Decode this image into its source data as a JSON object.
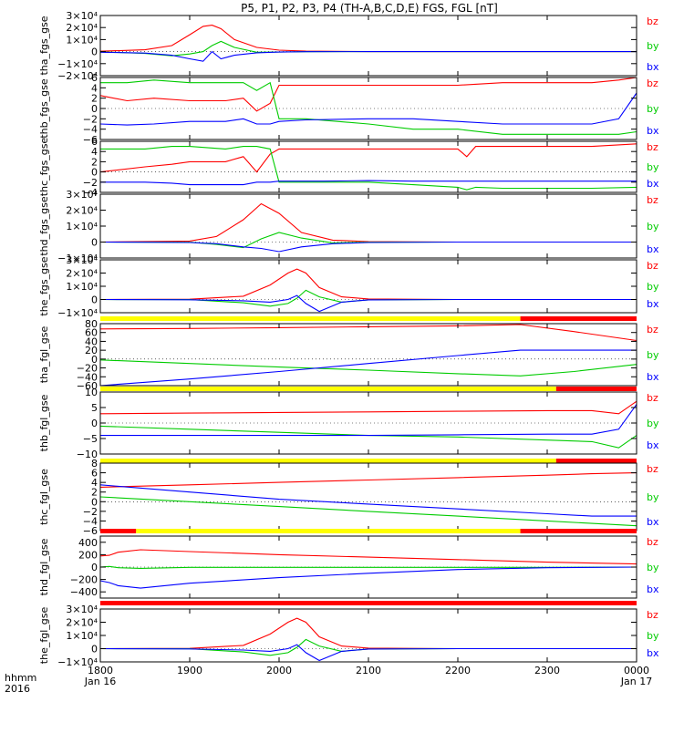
{
  "title": "P5, P1, P2, P3, P4 (TH-A,B,C,D,E) FGS, FGL [nT]",
  "colors": {
    "bz": "#ff0000",
    "by": "#00cc00",
    "bx": "#0000ff",
    "flag_yellow": "#ffff00",
    "flag_red": "#ff0000",
    "axis": "#000000"
  },
  "time_axis": {
    "row_label_1": "hhmm",
    "row_label_2": "2016",
    "ticks": [
      {
        "t": 1800,
        "label": "1800",
        "date": "Jan 16"
      },
      {
        "t": 1900,
        "label": "1900",
        "date": ""
      },
      {
        "t": 2000,
        "label": "2000",
        "date": ""
      },
      {
        "t": 2100,
        "label": "2100",
        "date": ""
      },
      {
        "t": 2200,
        "label": "2200",
        "date": ""
      },
      {
        "t": 2300,
        "label": "2300",
        "date": ""
      },
      {
        "t": 2400,
        "label": "0000",
        "date": "Jan 17"
      }
    ],
    "range": [
      "2016-01-16 18:00",
      "2016-01-17 00:00"
    ]
  },
  "chart_data": [
    {
      "type": "line",
      "ylabel": "tha_fgs_gse",
      "ylim": [
        -20000,
        30000
      ],
      "yticks": [
        {
          "v": 30000,
          "label": "3×10⁴"
        },
        {
          "v": 20000,
          "label": "2×10⁴"
        },
        {
          "v": 10000,
          "label": "1×10⁴"
        },
        {
          "v": 0,
          "label": "0"
        },
        {
          "v": -10000,
          "label": "−1×10⁴"
        },
        {
          "v": -20000,
          "label": "−2×10⁴"
        }
      ],
      "x": [
        1800,
        1850,
        1880,
        1900,
        1915,
        1925,
        1935,
        1950,
        1975,
        2000,
        2030,
        2100,
        2400
      ],
      "series": [
        {
          "name": "bz",
          "values": [
            300,
            1500,
            5000,
            14000,
            21000,
            22000,
            19000,
            10000,
            3500,
            1200,
            400,
            0,
            0
          ]
        },
        {
          "name": "by",
          "values": [
            -200,
            -1500,
            -3500,
            -2000,
            0,
            5000,
            8500,
            3500,
            -500,
            -400,
            -100,
            0,
            0
          ]
        },
        {
          "name": "bx",
          "values": [
            -500,
            -1200,
            -3000,
            -6000,
            -8000,
            0,
            -6000,
            -3000,
            -1000,
            -400,
            -100,
            0,
            0
          ]
        }
      ]
    },
    {
      "type": "line",
      "ylabel": "thb_fgs_gse",
      "ylim": [
        -6,
        6
      ],
      "yticks": [
        {
          "v": 6,
          "label": "6"
        },
        {
          "v": 4,
          "label": "4"
        },
        {
          "v": 2,
          "label": "2"
        },
        {
          "v": 0,
          "label": "0"
        },
        {
          "v": -2,
          "label": "−2"
        },
        {
          "v": -4,
          "label": "−4"
        },
        {
          "v": -6,
          "label": "−6"
        }
      ],
      "x": [
        1800,
        1830,
        1860,
        1900,
        1940,
        1960,
        1975,
        1990,
        2000,
        2030,
        2100,
        2150,
        2200,
        2250,
        2300,
        2350,
        2380,
        2400
      ],
      "series": [
        {
          "name": "bz",
          "values": [
            2.5,
            1.5,
            2,
            1.5,
            1.5,
            2,
            -0.5,
            1,
            4.5,
            4.5,
            4.5,
            4.5,
            4.5,
            5,
            5,
            5,
            5.5,
            6
          ]
        },
        {
          "name": "by",
          "values": [
            5,
            5,
            5.5,
            5,
            5,
            5,
            3.5,
            5,
            -2,
            -2,
            -3,
            -4,
            -4,
            -5,
            -5,
            -5,
            -5,
            -4.5
          ]
        },
        {
          "name": "bx",
          "values": [
            -3,
            -3.2,
            -3,
            -2.5,
            -2.5,
            -2,
            -3,
            -3,
            -2.5,
            -2.2,
            -2,
            -2,
            -2.5,
            -3,
            -3,
            -3,
            -2,
            3
          ]
        }
      ]
    },
    {
      "type": "line",
      "ylabel": "thc_fgs_gse",
      "ylim": [
        -4,
        6
      ],
      "yticks": [
        {
          "v": 6,
          "label": "6"
        },
        {
          "v": 4,
          "label": "4"
        },
        {
          "v": 2,
          "label": "2"
        },
        {
          "v": 0,
          "label": "0"
        },
        {
          "v": -2,
          "label": "−2"
        },
        {
          "v": -4,
          "label": "−4"
        }
      ],
      "x": [
        1800,
        1850,
        1880,
        1900,
        1940,
        1960,
        1975,
        1990,
        2000,
        2050,
        2100,
        2150,
        2200,
        2210,
        2220,
        2250,
        2300,
        2350,
        2400
      ],
      "series": [
        {
          "name": "bz",
          "values": [
            0,
            1,
            1.5,
            2,
            2,
            3,
            0,
            3.5,
            4.5,
            4.5,
            4.5,
            4.5,
            4.5,
            3,
            5,
            5,
            5,
            5,
            5.5
          ]
        },
        {
          "name": "by",
          "values": [
            4.5,
            4.5,
            5,
            5,
            4.5,
            5,
            5,
            4.5,
            -2,
            -2,
            -2,
            -2.5,
            -3,
            -3.5,
            -3,
            -3.2,
            -3.2,
            -3.2,
            -3
          ]
        },
        {
          "name": "bx",
          "values": [
            -2,
            -2,
            -2.2,
            -2.5,
            -2.5,
            -2.5,
            -2,
            -2,
            -1.8,
            -1.8,
            -1.7,
            -1.8,
            -1.8,
            -1.8,
            -1.8,
            -1.8,
            -1.8,
            -1.8,
            -1.8
          ]
        }
      ]
    },
    {
      "type": "line",
      "ylabel": "thd_fgs_gse",
      "ylim": [
        -10000,
        30000
      ],
      "yticks": [
        {
          "v": 30000,
          "label": "3×10⁴"
        },
        {
          "v": 20000,
          "label": "2×10⁴"
        },
        {
          "v": 10000,
          "label": "1×10⁴"
        },
        {
          "v": 0,
          "label": "0"
        },
        {
          "v": -10000,
          "label": "−1×10⁴"
        }
      ],
      "x": [
        1800,
        1900,
        1930,
        1960,
        1980,
        2000,
        2025,
        2060,
        2100,
        2200,
        2400
      ],
      "series": [
        {
          "name": "bz",
          "values": [
            0,
            600,
            3500,
            14000,
            24000,
            18000,
            6000,
            1200,
            300,
            0,
            0
          ]
        },
        {
          "name": "by",
          "values": [
            0,
            -100,
            -1500,
            -3500,
            2000,
            6000,
            2500,
            -500,
            -100,
            0,
            0
          ]
        },
        {
          "name": "bx",
          "values": [
            0,
            -300,
            -1000,
            -3000,
            -4000,
            -6000,
            -3000,
            -1000,
            -300,
            0,
            0
          ]
        }
      ]
    },
    {
      "type": "line",
      "ylabel": "the_fgs_gse",
      "ylim": [
        -10000,
        30000
      ],
      "yticks": [
        {
          "v": 30000,
          "label": "3×10⁴"
        },
        {
          "v": 20000,
          "label": "2×10⁴"
        },
        {
          "v": 10000,
          "label": "1×10⁴"
        },
        {
          "v": 0,
          "label": "0"
        },
        {
          "v": -10000,
          "label": "−1×10⁴"
        }
      ],
      "x": [
        1800,
        1900,
        1960,
        1990,
        2010,
        2020,
        2030,
        2045,
        2070,
        2100,
        2200,
        2400
      ],
      "series": [
        {
          "name": "bz",
          "values": [
            0,
            200,
            2500,
            11000,
            20000,
            23000,
            20000,
            9000,
            2000,
            400,
            0,
            0
          ]
        },
        {
          "name": "by",
          "values": [
            0,
            -100,
            -2500,
            -5000,
            -3000,
            1000,
            7000,
            2000,
            -2000,
            -300,
            0,
            0
          ]
        },
        {
          "name": "bx",
          "values": [
            0,
            -200,
            -1000,
            -2000,
            0,
            3000,
            -3000,
            -9000,
            -2000,
            -300,
            0,
            0
          ]
        }
      ]
    },
    {
      "type": "line",
      "ylabel": "tha_fgl_gse",
      "ylim": [
        -60,
        80
      ],
      "yticks": [
        {
          "v": 80,
          "label": "80"
        },
        {
          "v": 60,
          "label": "60"
        },
        {
          "v": 40,
          "label": "40"
        },
        {
          "v": 20,
          "label": "20"
        },
        {
          "v": 0,
          "label": "0"
        },
        {
          "v": -20,
          "label": "−20"
        },
        {
          "v": -40,
          "label": "−40"
        },
        {
          "v": -60,
          "label": "−60"
        }
      ],
      "flag": [
        {
          "from": 1800,
          "to": 2270,
          "color": "yellow"
        },
        {
          "from": 2270,
          "to": 2400,
          "color": "red"
        }
      ],
      "x": [
        1800,
        1900,
        2000,
        2100,
        2200,
        2270,
        2330,
        2400
      ],
      "series": [
        {
          "name": "bz",
          "values": [
            68,
            69,
            71,
            73,
            75,
            78,
            62,
            42
          ]
        },
        {
          "name": "by",
          "values": [
            -2,
            -10,
            -18,
            -25,
            -33,
            -38,
            -28,
            -12
          ]
        },
        {
          "name": "bx",
          "values": [
            -60,
            -45,
            -28,
            -10,
            8,
            20,
            20,
            20
          ]
        }
      ]
    },
    {
      "type": "line",
      "ylabel": "thb_fgl_gse",
      "ylim": [
        -10,
        10
      ],
      "yticks": [
        {
          "v": 10,
          "label": "10"
        },
        {
          "v": 5,
          "label": "5"
        },
        {
          "v": 0,
          "label": "0"
        },
        {
          "v": -5,
          "label": "−5"
        },
        {
          "v": -10,
          "label": "−10"
        }
      ],
      "flag": [
        {
          "from": 1800,
          "to": 2310,
          "color": "yellow"
        },
        {
          "from": 2310,
          "to": 2400,
          "color": "red"
        }
      ],
      "x": [
        1800,
        1900,
        2000,
        2100,
        2200,
        2300,
        2350,
        2380,
        2400
      ],
      "series": [
        {
          "name": "bz",
          "values": [
            3,
            3.2,
            3.4,
            3.6,
            3.8,
            4,
            4,
            3,
            7
          ]
        },
        {
          "name": "by",
          "values": [
            -1,
            -2,
            -3,
            -4,
            -4.5,
            -5.5,
            -6,
            -8,
            -4
          ]
        },
        {
          "name": "bx",
          "values": [
            -4,
            -4,
            -4,
            -4,
            -3.8,
            -3.6,
            -3.6,
            -2,
            6
          ]
        }
      ]
    },
    {
      "type": "line",
      "ylabel": "thc_fgl_gse",
      "ylim": [
        -6,
        8
      ],
      "yticks": [
        {
          "v": 8,
          "label": "8"
        },
        {
          "v": 6,
          "label": "6"
        },
        {
          "v": 4,
          "label": "4"
        },
        {
          "v": 2,
          "label": "2"
        },
        {
          "v": 0,
          "label": "0"
        },
        {
          "v": -2,
          "label": "−2"
        },
        {
          "v": -4,
          "label": "−4"
        },
        {
          "v": -6,
          "label": "−6"
        }
      ],
      "flag": [
        {
          "from": 1800,
          "to": 2310,
          "color": "yellow"
        },
        {
          "from": 2310,
          "to": 2400,
          "color": "red"
        }
      ],
      "x": [
        1800,
        1900,
        2000,
        2100,
        2200,
        2300,
        2350,
        2400
      ],
      "series": [
        {
          "name": "bz",
          "values": [
            3,
            3.5,
            4,
            4.5,
            5,
            5.5,
            5.8,
            6
          ]
        },
        {
          "name": "by",
          "values": [
            1,
            0,
            -1,
            -2,
            -3,
            -4,
            -4.5,
            -5
          ]
        },
        {
          "name": "bx",
          "values": [
            3.5,
            2,
            0.5,
            -0.5,
            -1.5,
            -2.5,
            -3,
            -3
          ]
        }
      ]
    },
    {
      "type": "line",
      "ylabel": "thd_fgl_gse",
      "ylim": [
        -500,
        500
      ],
      "yticks": [
        {
          "v": 400,
          "label": "400"
        },
        {
          "v": 200,
          "label": "200"
        },
        {
          "v": 0,
          "label": "0"
        },
        {
          "v": -200,
          "label": "−200"
        },
        {
          "v": -400,
          "label": "−400"
        }
      ],
      "flag": [
        {
          "from": 1800,
          "to": 1840,
          "color": "red"
        },
        {
          "from": 1840,
          "to": 2270,
          "color": "yellow"
        },
        {
          "from": 2270,
          "to": 2400,
          "color": "red"
        }
      ],
      "x": [
        1800,
        1810,
        1820,
        1845,
        1900,
        2000,
        2100,
        2200,
        2300,
        2400
      ],
      "series": [
        {
          "name": "bz",
          "values": [
            180,
            190,
            240,
            280,
            250,
            200,
            160,
            120,
            80,
            50
          ]
        },
        {
          "name": "by",
          "values": [
            0,
            10,
            -10,
            -20,
            -5,
            -5,
            -5,
            -5,
            -5,
            0
          ]
        },
        {
          "name": "bx",
          "values": [
            -220,
            -250,
            -300,
            -340,
            -260,
            -170,
            -100,
            -40,
            -10,
            0
          ]
        }
      ]
    },
    {
      "type": "line",
      "ylabel": "the_fgl_gse",
      "ylim": [
        -10000,
        30000
      ],
      "yticks": [
        {
          "v": 30000,
          "label": "3×10⁴"
        },
        {
          "v": 20000,
          "label": "2×10⁴"
        },
        {
          "v": 10000,
          "label": "1×10⁴"
        },
        {
          "v": 0,
          "label": "0"
        },
        {
          "v": -10000,
          "label": "−1×10⁴"
        }
      ],
      "flag": [
        {
          "from": 1800,
          "to": 2400,
          "color": "red"
        }
      ],
      "x": [
        1800,
        1900,
        1960,
        1990,
        2010,
        2020,
        2030,
        2045,
        2070,
        2100,
        2200,
        2400
      ],
      "series": [
        {
          "name": "bz",
          "values": [
            0,
            200,
            2500,
            11000,
            20000,
            23000,
            20000,
            9000,
            2000,
            400,
            0,
            0
          ]
        },
        {
          "name": "by",
          "values": [
            0,
            -100,
            -2500,
            -5000,
            -3000,
            1000,
            7000,
            2000,
            -2000,
            -300,
            0,
            0
          ]
        },
        {
          "name": "bx",
          "values": [
            0,
            -200,
            -1000,
            -2000,
            0,
            3000,
            -3000,
            -9000,
            -2000,
            -300,
            0,
            0
          ]
        }
      ]
    }
  ]
}
